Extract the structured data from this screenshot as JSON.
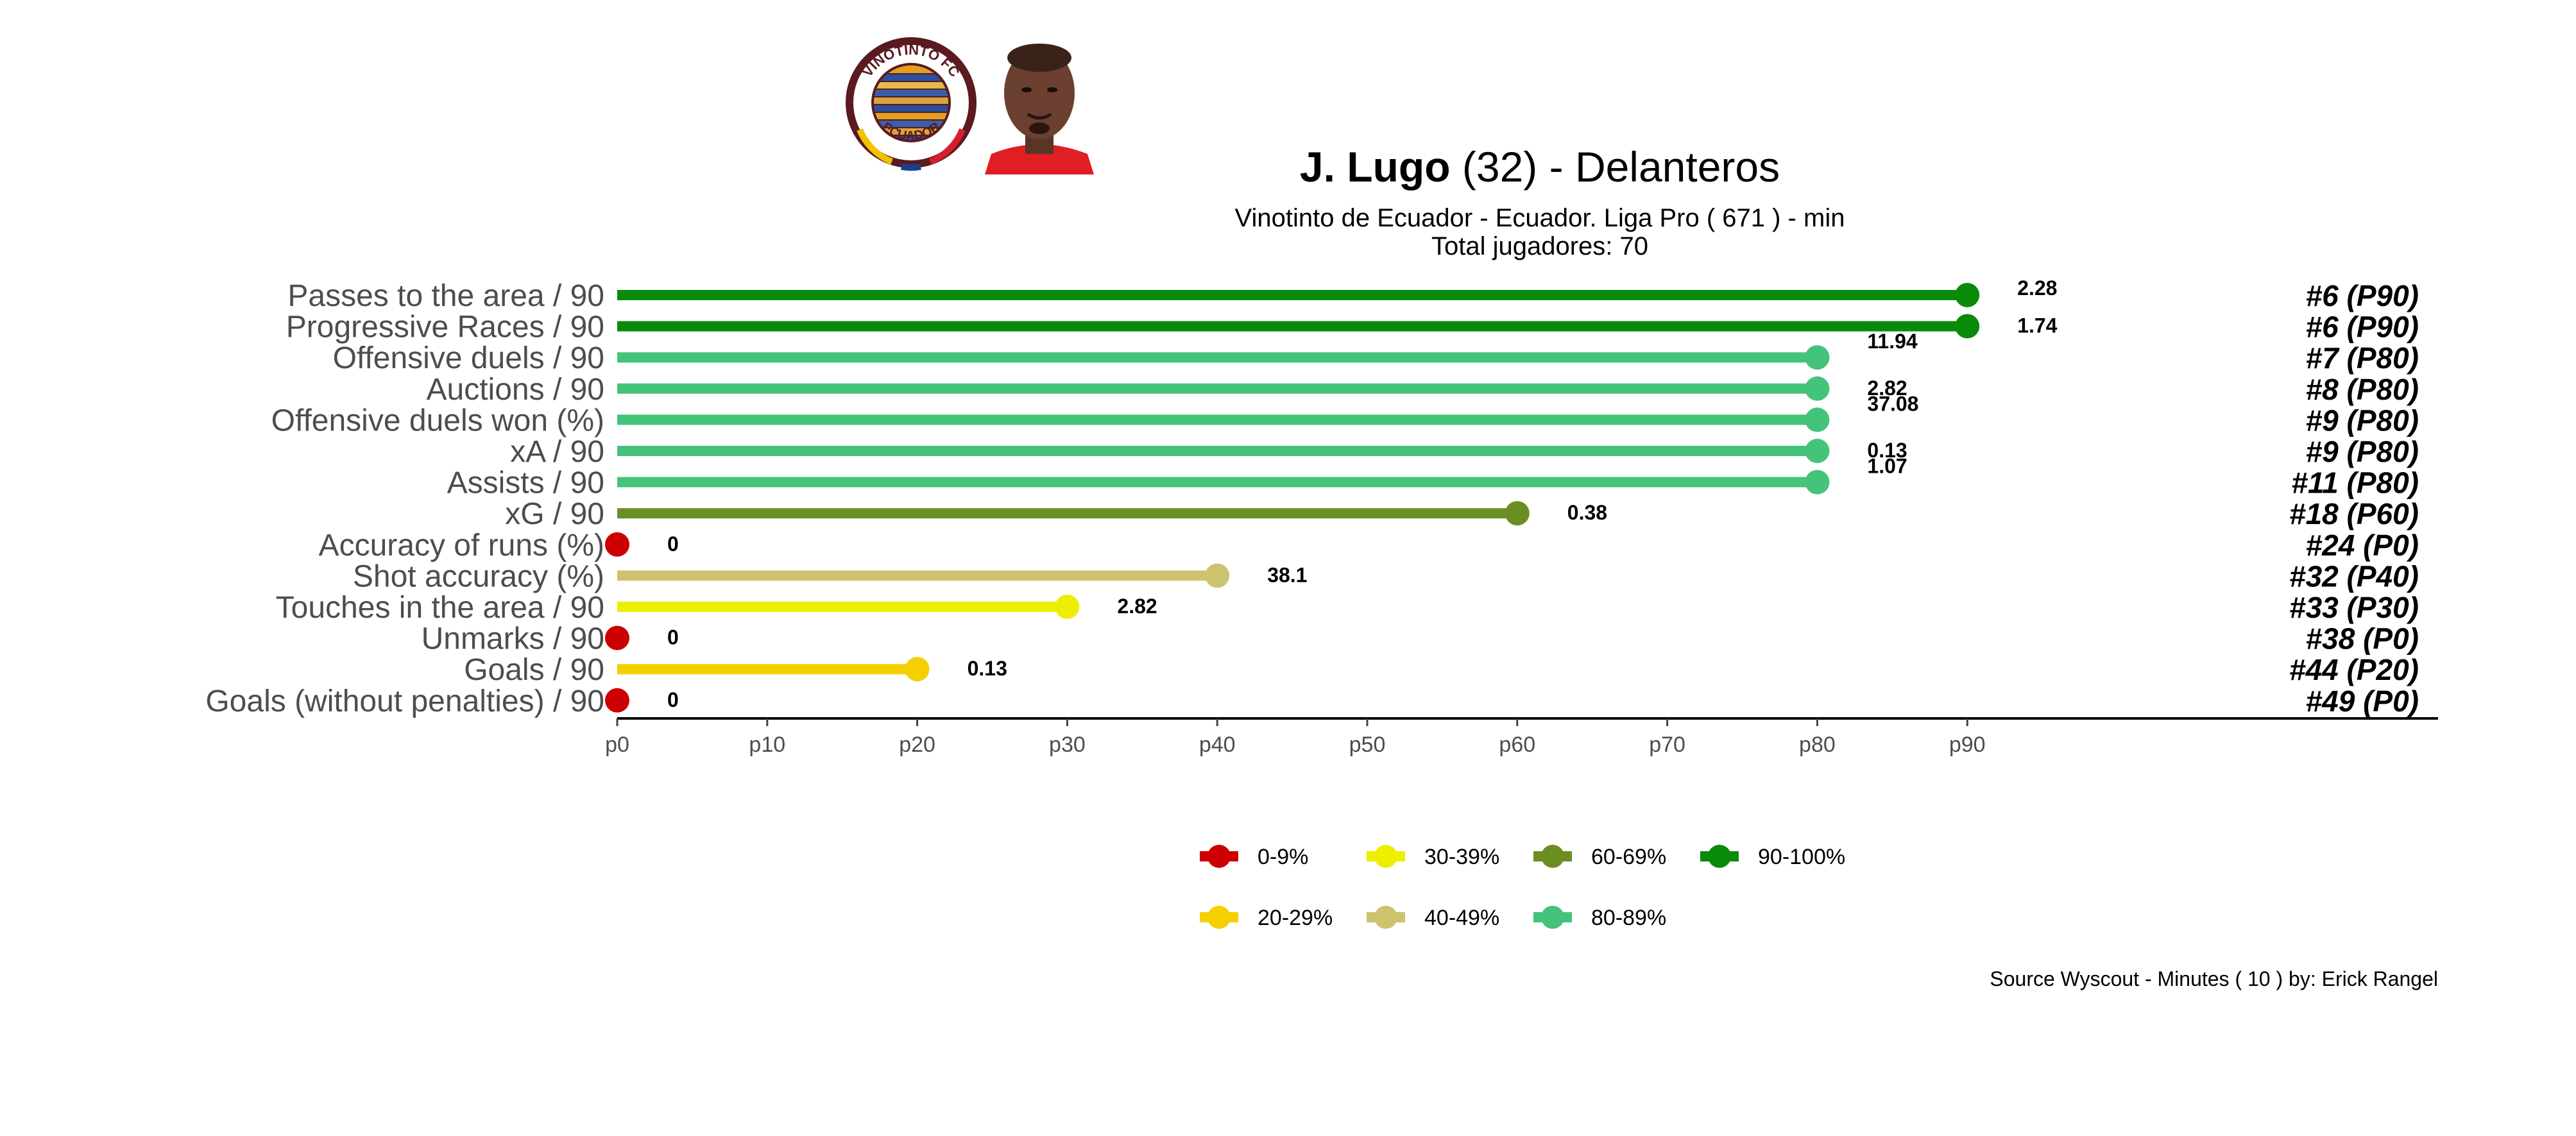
{
  "header": {
    "player_name": "J. Lugo",
    "player_age": "(32)",
    "separator": "-",
    "position": "Delanteros",
    "subtitle": "Vinotinto de Ecuador  -  Ecuador. Liga Pro  ( 671 ) - min",
    "players_label": "Total jugadores:  70"
  },
  "badge": {
    "top_text": "VINOTINTO FC",
    "bottom_text": "ECUADOR",
    "primary_color": "#5a1a1f",
    "accent_colors": [
      "#f2c200",
      "#1b3f8f",
      "#d81e2c"
    ]
  },
  "footer": {
    "source": "Source Wyscout - Minutes ( 10 ) by: Erick Rangel"
  },
  "chart_data": {
    "type": "lollipop",
    "title": "J. Lugo (32) - Delanteros",
    "xlabel": "",
    "ylabel": "",
    "xlim": [
      0,
      100
    ],
    "x_ticks": [
      "p0",
      "p10",
      "p20",
      "p30",
      "p40",
      "p50",
      "p60",
      "p70",
      "p80",
      "p90"
    ],
    "rows": [
      {
        "metric": "Passes to the area / 90",
        "percentile": 90,
        "value_label": "2.28",
        "rank_label": "#6 (P90)",
        "color": "#0a8a0a"
      },
      {
        "metric": "Progressive Races / 90",
        "percentile": 90,
        "value_label": "1.74",
        "rank_label": "#6 (P90)",
        "color": "#0a8a0a"
      },
      {
        "metric": "Offensive duels / 90",
        "percentile": 80,
        "value_label": "11.94",
        "rank_label": "#7 (P80)",
        "color": "#44c37a"
      },
      {
        "metric": "Auctions / 90",
        "percentile": 80,
        "value_label": "2.82",
        "rank_label": "#8 (P80)",
        "color": "#44c37a"
      },
      {
        "metric": "Offensive duels won (%)",
        "percentile": 80,
        "value_label": "37.08",
        "rank_label": "#9 (P80)",
        "color": "#44c37a"
      },
      {
        "metric": "xA / 90",
        "percentile": 80,
        "value_label": "0.13",
        "rank_label": "#9 (P80)",
        "color": "#44c37a"
      },
      {
        "metric": "Assists / 90",
        "percentile": 80,
        "value_label": "1.07",
        "rank_label": "#11 (P80)",
        "color": "#44c37a"
      },
      {
        "metric": "xG / 90",
        "percentile": 60,
        "value_label": "0.38",
        "rank_label": "#18 (P60)",
        "color": "#6b8e23"
      },
      {
        "metric": "Accuracy of runs (%)",
        "percentile": 0,
        "value_label": "0",
        "rank_label": "#24 (P0)",
        "color": "#cc0000"
      },
      {
        "metric": "Shot accuracy (%)",
        "percentile": 40,
        "value_label": "38.1",
        "rank_label": "#32 (P40)",
        "color": "#cdc36e"
      },
      {
        "metric": "Touches in the area / 90",
        "percentile": 30,
        "value_label": "2.82",
        "rank_label": "#33 (P30)",
        "color": "#eeee00"
      },
      {
        "metric": "Unmarks / 90",
        "percentile": 0,
        "value_label": "0",
        "rank_label": "#38 (P0)",
        "color": "#cc0000"
      },
      {
        "metric": "Goals / 90",
        "percentile": 20,
        "value_label": "0.13",
        "rank_label": "#44 (P20)",
        "color": "#f5d000"
      },
      {
        "metric": "Goals (without penalties) / 90",
        "percentile": 0,
        "value_label": "0",
        "rank_label": "#49 (P0)",
        "color": "#cc0000"
      }
    ],
    "legend": [
      {
        "label": "0-9%",
        "color": "#cc0000"
      },
      {
        "label": "30-39%",
        "color": "#eeee00"
      },
      {
        "label": "60-69%",
        "color": "#6b8e23"
      },
      {
        "label": "90-100%",
        "color": "#0a8a0a"
      },
      {
        "label": "20-29%",
        "color": "#f5d000"
      },
      {
        "label": "40-49%",
        "color": "#cdc36e"
      },
      {
        "label": "80-89%",
        "color": "#44c37a"
      }
    ],
    "legend_position": "bottom"
  }
}
